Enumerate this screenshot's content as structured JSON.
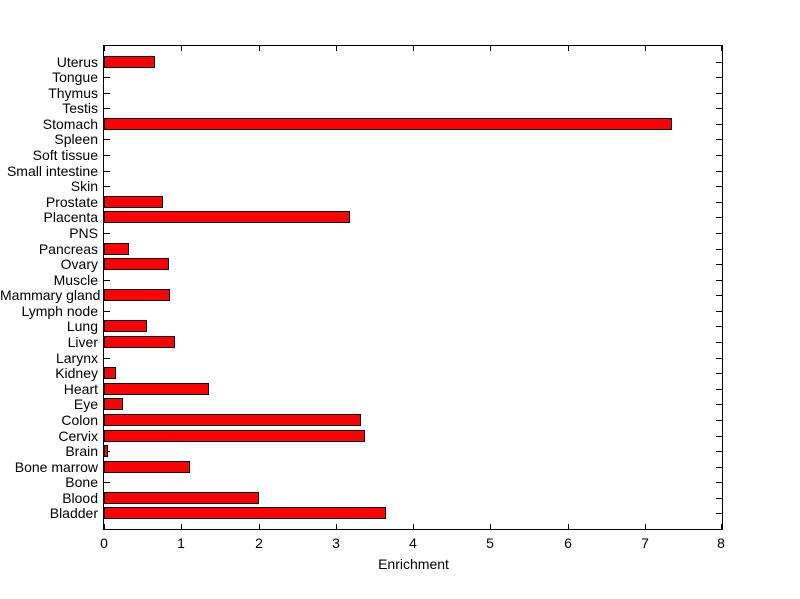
{
  "chart_data": {
    "type": "bar",
    "orientation": "horizontal",
    "title": "",
    "xlabel": "Enrichment",
    "ylabel": "",
    "xlim": [
      0,
      8
    ],
    "xticks": [
      "0",
      "1",
      "2",
      "3",
      "4",
      "5",
      "6",
      "7",
      "8"
    ],
    "grid": false,
    "legend": null,
    "bar_color": "#ff0000",
    "bar_edge_color": "#000000",
    "axis_color": "#000000",
    "background_color": "#ffffff",
    "categories_order": "top-to-bottom",
    "categories": [
      "Uterus",
      "Tongue",
      "Thymus",
      "Testis",
      "Stomach",
      "Spleen",
      "Soft tissue",
      "Small intestine",
      "Skin",
      "Prostate",
      "Placenta",
      "PNS",
      "Pancreas",
      "Ovary",
      "Muscle",
      "Mammary gland",
      "Lymph node",
      "Lung",
      "Liver",
      "Larynx",
      "Kidney",
      "Heart",
      "Eye",
      "Colon",
      "Cervix",
      "Brain",
      "Bone marrow",
      "Bone",
      "Blood",
      "Bladder"
    ],
    "values": [
      0.66,
      0,
      0,
      0,
      7.35,
      0,
      0,
      0,
      0,
      0.76,
      3.19,
      0,
      0.32,
      0.84,
      0,
      0.86,
      0,
      0.56,
      0.92,
      0,
      0.16,
      1.36,
      0.25,
      3.33,
      3.38,
      0.05,
      1.11,
      0,
      2.0,
      3.65
    ]
  }
}
